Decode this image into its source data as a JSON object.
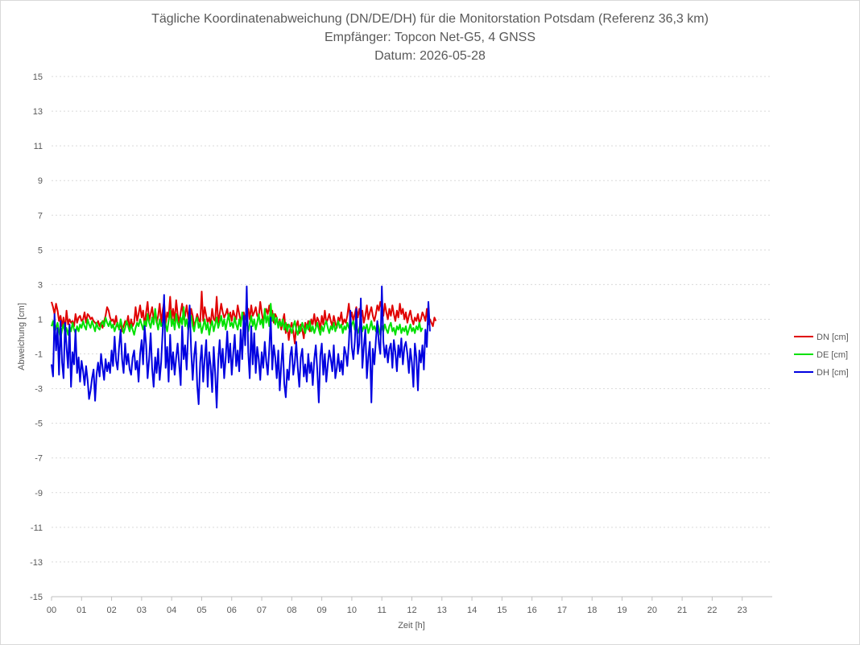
{
  "chart_data": {
    "type": "line",
    "title_lines": [
      "Tägliche Koordinatenabweichung (DN/DE/DH) für die Monitorstation Potsdam (Referenz 36,3 km)",
      "Empfänger: Topcon Net-G5, 4 GNSS",
      "Datum: 2026-05-28"
    ],
    "xlabel": "Zeit [h]",
    "ylabel": "Abweichung [cm]",
    "xlim": [
      0,
      24
    ],
    "ylim": [
      -15,
      15
    ],
    "x_ticks": [
      "00",
      "01",
      "02",
      "03",
      "04",
      "05",
      "06",
      "07",
      "08",
      "09",
      "10",
      "11",
      "12",
      "13",
      "14",
      "15",
      "16",
      "17",
      "18",
      "19",
      "20",
      "21",
      "22",
      "23"
    ],
    "y_ticks": [
      15,
      13,
      11,
      9,
      7,
      5,
      3,
      1,
      -1,
      -3,
      -5,
      -7,
      -9,
      -11,
      -13,
      -15
    ],
    "grid": true,
    "legend_position": "right",
    "sample_interval_h": 0.05,
    "series": [
      {
        "name": "DN [cm]",
        "color": "#e00000",
        "values": [
          2.0,
          1.7,
          1.3,
          1.9,
          1.5,
          0.9,
          1.2,
          0.6,
          1.1,
          0.4,
          1.5,
          0.7,
          1.0,
          0.8,
          0.9,
          0.6,
          1.3,
          0.8,
          1.1,
          1.2,
          0.9,
          1.0,
          1.4,
          0.8,
          1.3,
          1.2,
          1.0,
          1.1,
          0.9,
          0.8,
          0.7,
          0.9,
          0.6,
          0.8,
          0.5,
          0.9,
          1.2,
          1.7,
          1.5,
          1.1,
          0.9,
          1.0,
          0.7,
          1.2,
          0.6,
          0.5,
          0.8,
          0.3,
          0.6,
          0.9,
          0.7,
          1.2,
          0.4,
          1.0,
          0.6,
          0.8,
          1.7,
          0.9,
          1.3,
          1.8,
          1.1,
          1.5,
          0.6,
          1.4,
          2.0,
          0.9,
          1.3,
          1.7,
          1.0,
          1.4,
          0.8,
          1.2,
          1.9,
          0.8,
          1.5,
          2.0,
          0.7,
          1.4,
          1.1,
          2.3,
          1.0,
          1.6,
          0.9,
          2.1,
          1.3,
          0.8,
          1.4,
          1.9,
          1.0,
          1.2,
          1.8,
          1.1,
          0.7,
          1.6,
          1.2,
          0.6,
          0.9,
          1.3,
          1.0,
          0.8,
          2.6,
          0.9,
          1.7,
          1.2,
          0.8,
          1.1,
          0.7,
          1.6,
          1.0,
          0.9,
          2.3,
          0.8,
          1.3,
          1.9,
          1.4,
          1.1,
          1.3,
          1.6,
          1.0,
          1.4,
          0.9,
          1.5,
          1.2,
          1.0,
          1.8,
          1.3,
          0.9,
          1.1,
          1.4,
          1.0,
          1.2,
          1.6,
          1.0,
          1.8,
          1.2,
          1.4,
          1.7,
          1.2,
          1.1,
          2.0,
          1.4,
          0.9,
          1.2,
          1.6,
          1.3,
          1.8,
          1.1,
          1.5,
          0.8,
          1.3,
          1.1,
          0.6,
          1.0,
          0.4,
          0.9,
          1.3,
          0.2,
          0.7,
          -0.2,
          0.5,
          0.8,
          0.3,
          -0.4,
          0.6,
          0.9,
          0.2,
          0.7,
          0.4,
          -0.1,
          0.8,
          0.5,
          0.9,
          0.3,
          1.0,
          0.7,
          1.3,
          0.6,
          1.1,
          0.9,
          0.4,
          1.2,
          0.7,
          1.5,
          0.8,
          1.0,
          1.3,
          0.9,
          0.6,
          1.2,
          0.8,
          0.5,
          1.1,
          0.9,
          1.4,
          0.7,
          1.0,
          0.8,
          1.2,
          1.9,
          1.0,
          1.4,
          0.9,
          1.3,
          1.7,
          1.1,
          1.6,
          1.0,
          1.5,
          0.8,
          1.2,
          1.8,
          1.0,
          1.4,
          1.7,
          1.2,
          0.9,
          1.3,
          1.8,
          1.5,
          2.0,
          1.6,
          1.2,
          1.9,
          1.4,
          1.0,
          1.6,
          1.2,
          1.8,
          1.3,
          0.9,
          1.5,
          1.1,
          1.9,
          1.3,
          1.6,
          1.0,
          1.4,
          0.8,
          1.2,
          1.5,
          1.0,
          0.7,
          1.1,
          0.9,
          1.3,
          0.8,
          1.0,
          1.4,
          1.2,
          0.9,
          1.6,
          0.7,
          1.0,
          0.8,
          0.6,
          1.1,
          0.9
        ],
        "name_note": ""
      },
      {
        "name": "DE [cm]",
        "color": "#00e000",
        "values": [
          0.6,
          0.9,
          0.2,
          0.5,
          0.8,
          0.3,
          -0.1,
          0.4,
          0.7,
          0.2,
          0.5,
          0.1,
          0.6,
          0.3,
          0.8,
          0.4,
          0.2,
          0.6,
          0.3,
          0.7,
          0.5,
          0.9,
          0.6,
          0.4,
          1.0,
          0.7,
          0.5,
          0.9,
          0.6,
          0.3,
          0.8,
          0.5,
          0.4,
          0.7,
          0.9,
          0.6,
          1.1,
          0.8,
          0.6,
          0.9,
          0.5,
          0.7,
          0.3,
          0.6,
          0.8,
          0.4,
          1.0,
          0.6,
          0.2,
          0.5,
          0.9,
          0.6,
          0.3,
          0.7,
          0.4,
          0.1,
          0.5,
          0.8,
          0.6,
          1.0,
          0.7,
          0.4,
          0.9,
          0.6,
          1.3,
          0.8,
          0.5,
          1.1,
          0.7,
          1.6,
          0.9,
          0.4,
          1.0,
          0.6,
          0.8,
          1.2,
          0.7,
          0.3,
          0.9,
          1.5,
          0.6,
          1.0,
          0.4,
          1.3,
          0.8,
          0.5,
          1.1,
          0.7,
          1.7,
          0.6,
          1.0,
          0.4,
          0.8,
          1.2,
          0.6,
          0.3,
          0.9,
          1.1,
          0.5,
          0.8,
          0.2,
          0.6,
          1.0,
          0.4,
          0.8,
          0.1,
          0.6,
          0.9,
          0.3,
          0.7,
          1.1,
          0.5,
          0.8,
          1.2,
          0.6,
          1.0,
          0.4,
          0.9,
          1.3,
          0.6,
          0.8,
          0.5,
          1.1,
          0.7,
          0.4,
          1.0,
          0.6,
          1.4,
          0.8,
          0.5,
          0.9,
          0.3,
          0.7,
          1.2,
          0.6,
          1.0,
          0.4,
          0.8,
          1.3,
          0.7,
          1.0,
          0.5,
          1.6,
          0.8,
          1.2,
          0.6,
          1.9,
          0.9,
          1.3,
          0.7,
          1.1,
          0.5,
          0.9,
          0.6,
          1.0,
          0.4,
          0.8,
          0.3,
          0.7,
          0.5,
          0.2,
          0.6,
          0.9,
          0.4,
          0.1,
          0.6,
          0.3,
          0.8,
          0.5,
          0.2,
          0.7,
          0.4,
          0.9,
          0.3,
          0.6,
          0.2,
          0.5,
          0.8,
          0.4,
          0.1,
          0.6,
          0.3,
          0.7,
          0.9,
          0.5,
          0.2,
          0.6,
          0.4,
          0.8,
          0.3,
          0.6,
          0.9,
          0.5,
          0.7,
          0.2,
          0.6,
          0.4,
          0.8,
          0.5,
          0.3,
          0.7,
          0.9,
          0.4,
          0.6,
          0.2,
          0.5,
          0.8,
          0.3,
          0.6,
          0.4,
          0.7,
          0.2,
          0.5,
          0.9,
          0.4,
          0.6,
          0.3,
          0.8,
          0.5,
          0.1,
          0.6,
          0.3,
          0.7,
          0.4,
          0.2,
          0.6,
          0.8,
          0.3,
          0.5,
          0.1,
          0.6,
          0.4,
          0.7,
          0.2,
          0.5,
          0.3,
          0.6,
          0.1,
          0.4,
          0.7,
          0.3,
          0.5,
          0.2,
          0.6,
          0.4,
          0.8,
          0.3,
          0.5
        ],
        "name_note": ""
      },
      {
        "name": "DH [cm]",
        "color": "#0000e0",
        "values": [
          -1.6,
          -2.3,
          1.3,
          -0.8,
          0.5,
          -2.2,
          0.9,
          -1.5,
          -2.4,
          0.8,
          -0.6,
          -1.8,
          0.7,
          -2.9,
          -0.9,
          -1.6,
          0.4,
          -2.1,
          -1.2,
          -2.6,
          -1.4,
          -2.0,
          -2.8,
          -1.7,
          -2.5,
          -3.6,
          -3.1,
          -2.4,
          -1.9,
          -3.7,
          -2.2,
          -1.5,
          -2.3,
          -1.0,
          -1.8,
          -2.5,
          -1.3,
          -2.0,
          -1.5,
          -2.1,
          -0.8,
          -1.7,
          0.0,
          -1.4,
          -1.9,
          -0.6,
          0.4,
          -1.3,
          -2.1,
          -0.4,
          -1.6,
          -1.0,
          -1.9,
          -2.2,
          -1.2,
          -0.8,
          -1.9,
          -1.4,
          -2.6,
          -1.0,
          -0.2,
          -1.6,
          0.6,
          -0.5,
          -2.4,
          -1.3,
          0.2,
          -1.8,
          -2.9,
          -1.2,
          -2.1,
          -0.7,
          -2.5,
          -1.5,
          0.3,
          2.4,
          -1.8,
          -0.6,
          -2.6,
          0.1,
          -1.9,
          -0.9,
          -2.2,
          -1.2,
          -0.4,
          -1.6,
          -2.8,
          0.6,
          -1.3,
          -0.5,
          -1.9,
          0.3,
          1.8,
          -0.8,
          -2.5,
          -1.1,
          -0.3,
          -2.8,
          -3.9,
          -1.5,
          -0.5,
          -2.6,
          -1.3,
          -0.2,
          -2.9,
          -0.9,
          -1.7,
          -3.2,
          -0.6,
          -2.1,
          -4.1,
          -1.4,
          -0.2,
          -1.8,
          -0.7,
          -2.4,
          -1.2,
          0.3,
          -1.5,
          -0.4,
          -2.2,
          -1.0,
          0.1,
          -1.7,
          -0.8,
          -2.0,
          0.4,
          -1.3,
          1.2,
          -0.5,
          2.9,
          -0.9,
          -2.4,
          0.6,
          -1.6,
          0.2,
          -2.1,
          -0.6,
          -1.3,
          -2.5,
          -0.9,
          -1.8,
          -0.3,
          -1.4,
          -2.2,
          -0.7,
          1.1,
          -1.9,
          -0.5,
          -1.2,
          -2.4,
          -0.8,
          -3.1,
          -1.6,
          -0.4,
          -2.7,
          -3.5,
          -1.9,
          -2.5,
          -1.1,
          -0.6,
          -2.2,
          -1.5,
          -0.3,
          -1.8,
          -2.9,
          -1.2,
          -0.7,
          -2.3,
          -1.6,
          -2.6,
          -1.0,
          -2.1,
          -1.5,
          -2.8,
          -1.3,
          -0.5,
          -1.9,
          -3.8,
          -1.1,
          -0.4,
          -2.2,
          -1.0,
          -2.6,
          -1.6,
          -0.8,
          -1.3,
          -2.0,
          -0.5,
          -2.4,
          -1.8,
          -1.0,
          -2.0,
          -1.4,
          -2.2,
          -0.6,
          -1.0,
          -1.7,
          -0.4,
          1.5,
          -0.6,
          -1.3,
          -0.3,
          1.6,
          -1.0,
          -0.4,
          2.2,
          -1.8,
          -0.6,
          0.4,
          -2.4,
          -1.2,
          -0.3,
          -3.8,
          -0.7,
          -1.6,
          -0.2,
          0.9,
          -0.4,
          -1.0,
          2.9,
          -0.3,
          -1.2,
          -0.5,
          -1.5,
          -0.7,
          -0.4,
          -1.8,
          -0.2,
          -0.9,
          -2.0,
          -0.5,
          -1.2,
          -0.1,
          -1.6,
          -0.6,
          -0.3,
          -1.0,
          -2.1,
          -0.7,
          -1.5,
          -2.9,
          -0.4,
          -1.2,
          -3.1,
          -0.8,
          -1.5,
          -0.5,
          -1.9,
          0.4,
          -0.6,
          2.0,
          0.3
        ],
        "name_note": ""
      }
    ]
  }
}
